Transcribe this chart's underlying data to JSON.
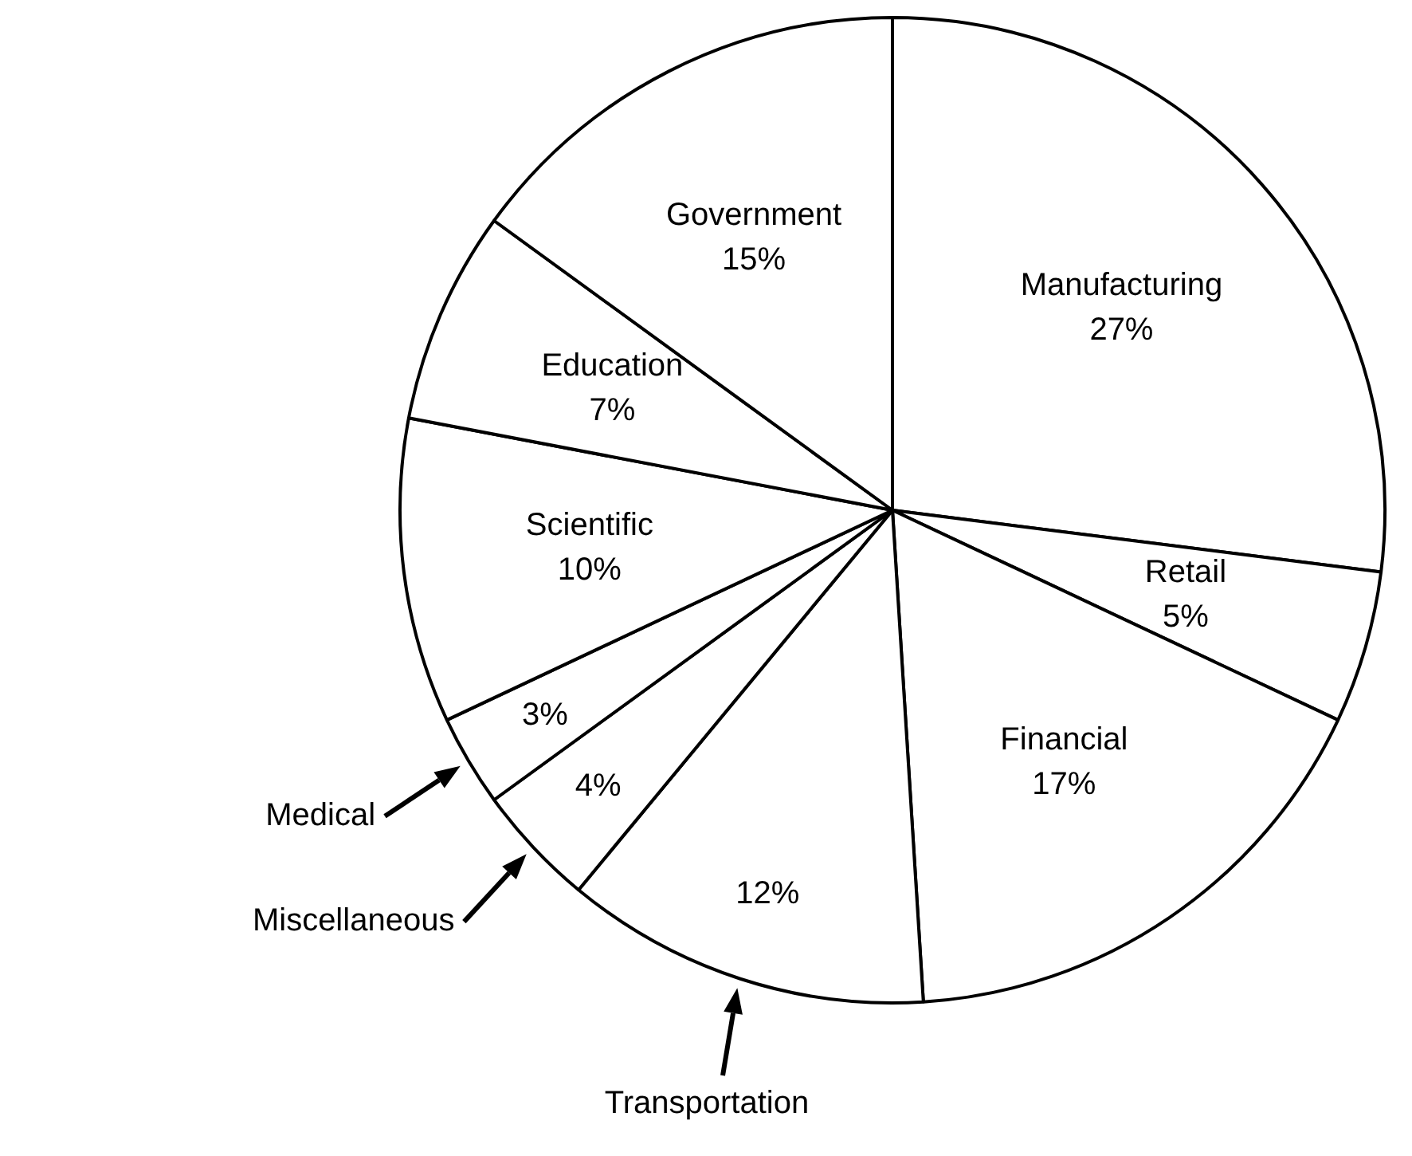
{
  "chart_data": {
    "type": "pie",
    "categories": [
      "Manufacturing",
      "Retail",
      "Financial",
      "Transportation",
      "Miscellaneous",
      "Medical",
      "Scientific",
      "Education",
      "Government"
    ],
    "values": [
      27,
      5,
      17,
      12,
      4,
      3,
      10,
      7,
      15
    ],
    "colors": [
      "#ffffff",
      "#ffffff",
      "#ffffff",
      "#ffffff",
      "#ffffff",
      "#ffffff",
      "#ffffff",
      "#ffffff",
      "#ffffff"
    ],
    "value_labels": [
      "27%",
      "5%",
      "17%",
      "12%",
      "4%",
      "3%",
      "10%",
      "7%",
      "15%"
    ],
    "legend": false
  }
}
